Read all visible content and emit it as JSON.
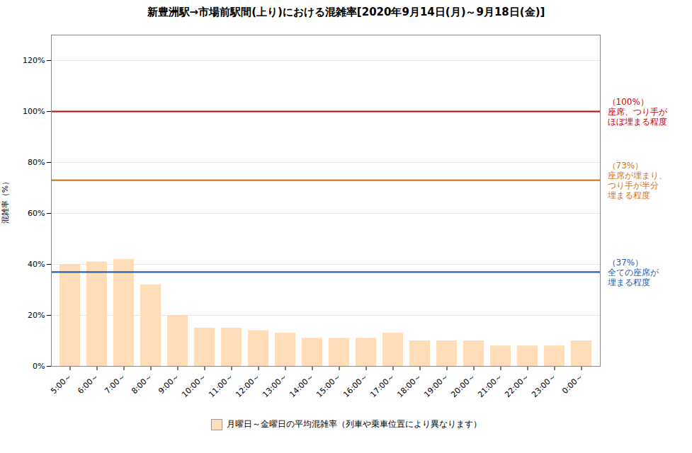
{
  "chart_data": {
    "type": "bar",
    "title": "新豊洲駅→市場前駅間(上り)における混雑率[2020年9月14日(月)～9月18日(金)]",
    "categories": [
      "5:00～",
      "6:00～",
      "7:00～",
      "8:00～",
      "9:00～",
      "10:00～",
      "11:00～",
      "12:00～",
      "13:00～",
      "14:00～",
      "15:00～",
      "16:00～",
      "17:00～",
      "18:00～",
      "19:00～",
      "20:00～",
      "21:00～",
      "22:00～",
      "23:00～",
      "0:00～"
    ],
    "series": [
      {
        "name": "月曜日～金曜日の平均混雑率（列車や乗車位置により異なります）",
        "color": "#FFDDB8",
        "values": [
          40,
          41,
          42,
          32,
          20,
          15,
          15,
          14,
          13,
          11,
          11,
          11,
          13,
          10,
          10,
          10,
          8,
          8,
          8,
          10
        ]
      }
    ],
    "ylabel": "混雑率（%）",
    "ylim": [
      0,
      130
    ],
    "yticks": [
      {
        "value": 0,
        "label": "0%"
      },
      {
        "value": 20,
        "label": "20%"
      },
      {
        "value": 40,
        "label": "40%"
      },
      {
        "value": 60,
        "label": "60%"
      },
      {
        "value": 80,
        "label": "80%"
      },
      {
        "value": 100,
        "label": "100%"
      },
      {
        "value": 120,
        "label": "120%"
      }
    ],
    "grid": true,
    "legend": "bottom",
    "ref_lines": [
      {
        "y": 100,
        "color": "#CC0000",
        "text": "（100%）\n座席、つり手が\nほぼ埋まる程度"
      },
      {
        "y": 73,
        "color": "#D07820",
        "text": "（73%）\n座席が埋まり、\nつり手が半分\n埋まる程度"
      },
      {
        "y": 37,
        "color": "#2B5EA8",
        "text": "（37%）\n全ての座席が\n埋まる程度"
      }
    ]
  }
}
